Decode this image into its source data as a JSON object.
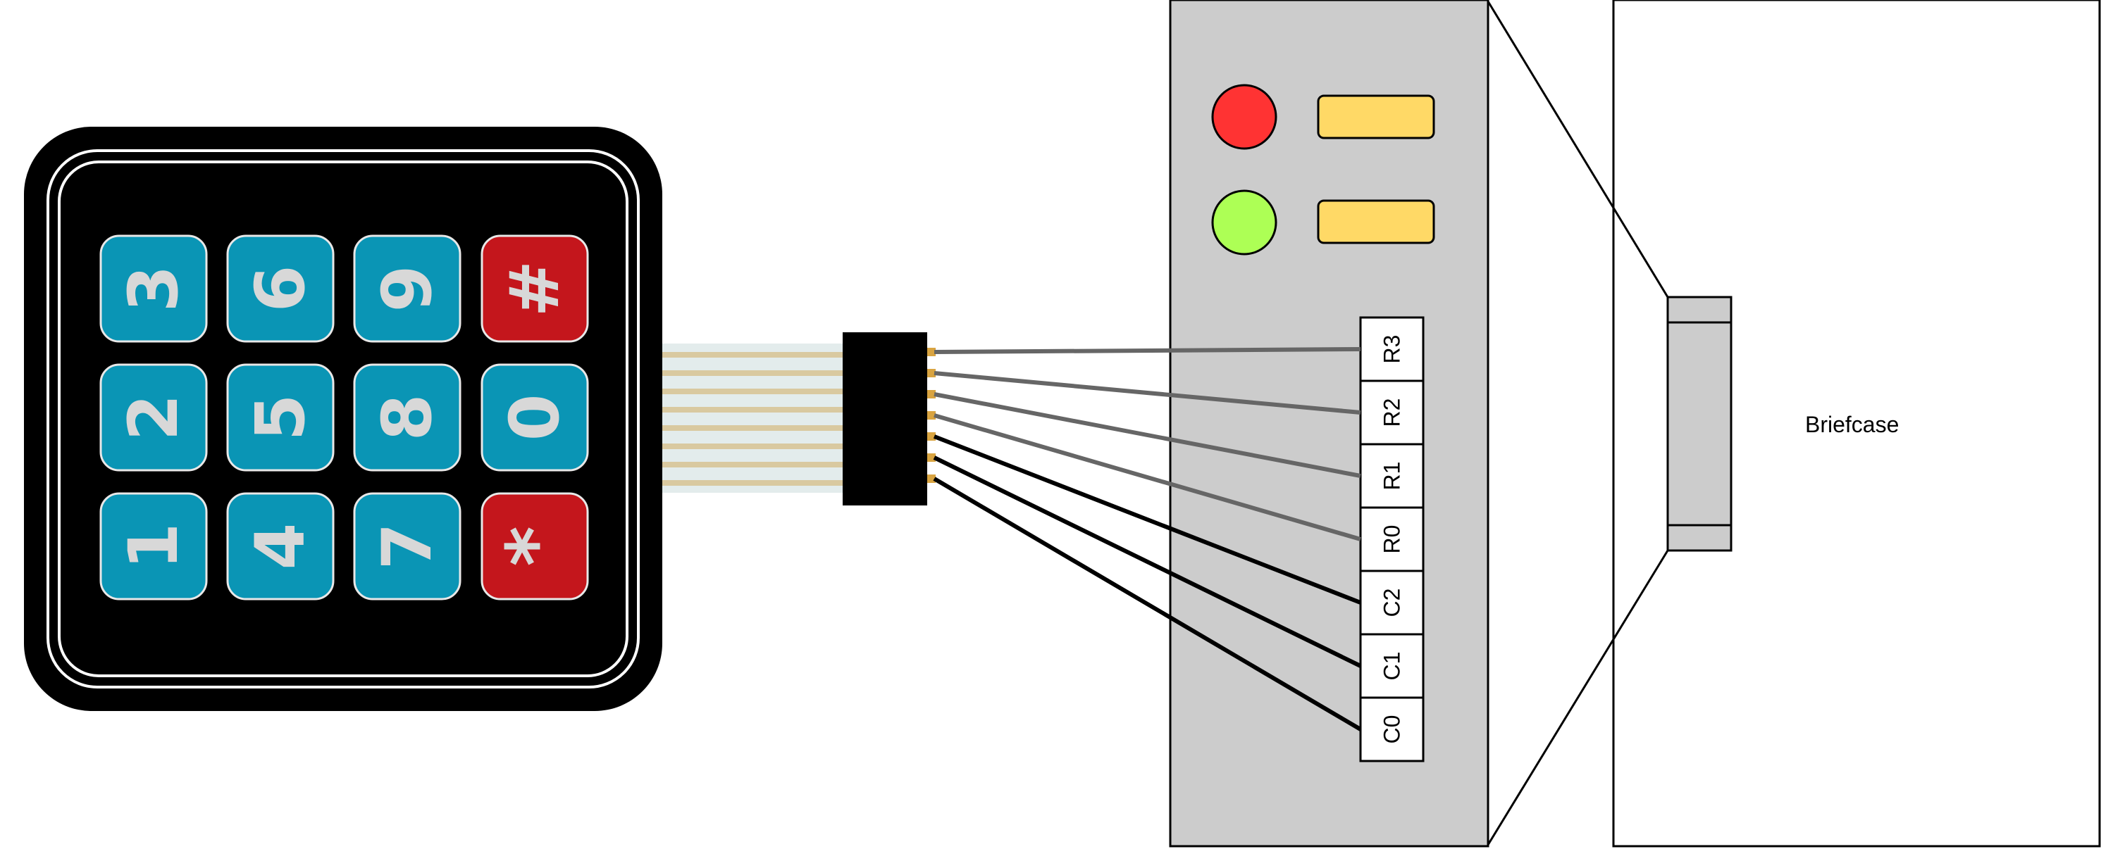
{
  "keypad": {
    "keys": [
      {
        "label": "3",
        "color": "#0a95b5"
      },
      {
        "label": "6",
        "color": "#0a95b5"
      },
      {
        "label": "9",
        "color": "#0a95b5"
      },
      {
        "label": "#",
        "color": "#c4161c"
      },
      {
        "label": "2",
        "color": "#0a95b5"
      },
      {
        "label": "5",
        "color": "#0a95b5"
      },
      {
        "label": "8",
        "color": "#0a95b5"
      },
      {
        "label": "0",
        "color": "#0a95b5"
      },
      {
        "label": "1",
        "color": "#0a95b5"
      },
      {
        "label": "4",
        "color": "#0a95b5"
      },
      {
        "label": "7",
        "color": "#0a95b5"
      },
      {
        "label": "*",
        "color": "#c4161c"
      }
    ]
  },
  "controller": {
    "indicators": [
      {
        "name": "red-led",
        "color": "#ff3333"
      },
      {
        "name": "green-led",
        "color": "#adff55"
      }
    ],
    "display_color": "#ffd966",
    "panel_color": "#cccccc",
    "pins": [
      "R3",
      "R2",
      "R1",
      "R0",
      "C2",
      "C1",
      "C0"
    ]
  },
  "briefcase": {
    "label": "Briefcase"
  },
  "wires": [
    {
      "pin": "R3",
      "color": "#666666"
    },
    {
      "pin": "R2",
      "color": "#666666"
    },
    {
      "pin": "R1",
      "color": "#666666"
    },
    {
      "pin": "R0",
      "color": "#666666"
    },
    {
      "pin": "C2",
      "color": "#000000"
    },
    {
      "pin": "C1",
      "color": "#000000"
    },
    {
      "pin": "C0",
      "color": "#000000"
    }
  ]
}
